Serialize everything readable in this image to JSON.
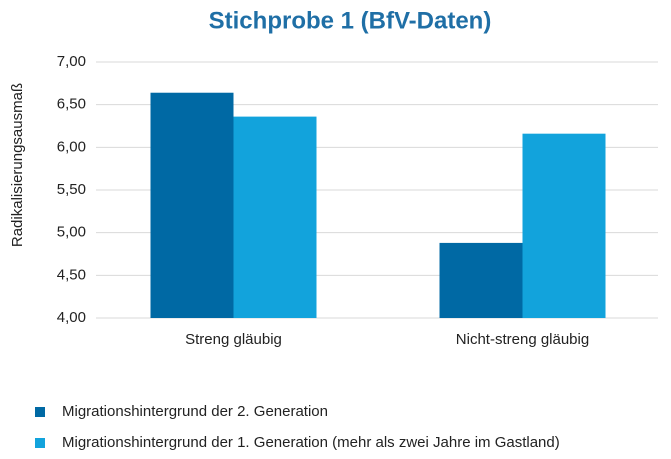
{
  "chart_data": {
    "type": "bar",
    "title": "Stichprobe 1 (BfV-Daten)",
    "y_label": "Radikalisierungsausmaß",
    "categories": [
      "Streng gläubig",
      "Nicht-streng gläubig"
    ],
    "series": [
      {
        "name": "Migrationshintergrund der 2. Generation",
        "color": "#0069a4",
        "values": [
          6.64,
          4.88
        ]
      },
      {
        "name": "Migrationshintergrund der 1. Generation (mehr als zwei Jahre im Gastland)",
        "color": "#12a3dc",
        "values": [
          6.36,
          6.16
        ]
      }
    ],
    "ylim": [
      4,
      7
    ],
    "yticks": [
      {
        "value": 4,
        "label": "4,00"
      },
      {
        "value": 4.5,
        "label": "4,50"
      },
      {
        "value": 5,
        "label": "5,00"
      },
      {
        "value": 5.5,
        "label": "5,50"
      },
      {
        "value": 6,
        "label": "6,00"
      },
      {
        "value": 6.5,
        "label": "6,50"
      },
      {
        "value": 7,
        "label": "7,00"
      }
    ],
    "grid": true,
    "legend": "bottom"
  }
}
